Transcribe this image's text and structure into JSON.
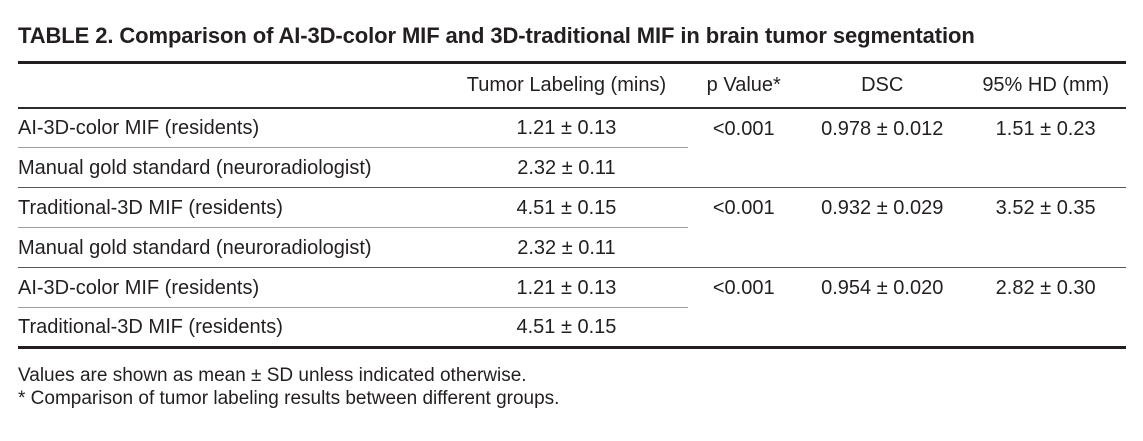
{
  "table": {
    "title": "TABLE 2. Comparison of AI-3D-color MIF and 3D-traditional MIF in brain tumor segmentation",
    "columns": {
      "method": "",
      "tumor_labeling": "Tumor Labeling (mins)",
      "p_value": "p Value*",
      "dsc": "DSC",
      "hd": "95% HD (mm)"
    },
    "groups": [
      {
        "rows": [
          {
            "method": "AI-3D-color MIF (residents)",
            "tumor_labeling": "1.21 ± 0.13"
          },
          {
            "method": "Manual gold standard (neuroradiologist)",
            "tumor_labeling": "2.32 ± 0.11"
          }
        ],
        "p_value": "<0.001",
        "dsc": "0.978 ± 0.012",
        "hd": "1.51 ± 0.23"
      },
      {
        "rows": [
          {
            "method": "Traditional-3D MIF (residents)",
            "tumor_labeling": "4.51 ± 0.15"
          },
          {
            "method": "Manual gold standard (neuroradiologist)",
            "tumor_labeling": "2.32 ± 0.11"
          }
        ],
        "p_value": "<0.001",
        "dsc": "0.932 ± 0.029",
        "hd": "3.52 ± 0.35"
      },
      {
        "rows": [
          {
            "method": "AI-3D-color MIF (residents)",
            "tumor_labeling": "1.21 ± 0.13"
          },
          {
            "method": "Traditional-3D MIF (residents)",
            "tumor_labeling": "4.51 ± 0.15"
          }
        ],
        "p_value": "<0.001",
        "dsc": "0.954 ± 0.020",
        "hd": "2.82 ± 0.30"
      }
    ],
    "footnotes": [
      "Values are shown as mean ± SD unless indicated otherwise.",
      "* Comparison of tumor labeling results between different groups."
    ]
  },
  "colors": {
    "text": "#231f20",
    "rule_heavy": "#231f20",
    "rule_header": "#2b2b2b",
    "rule_group": "#555555",
    "rule_inner": "#9e9e9e",
    "background": "#ffffff"
  }
}
